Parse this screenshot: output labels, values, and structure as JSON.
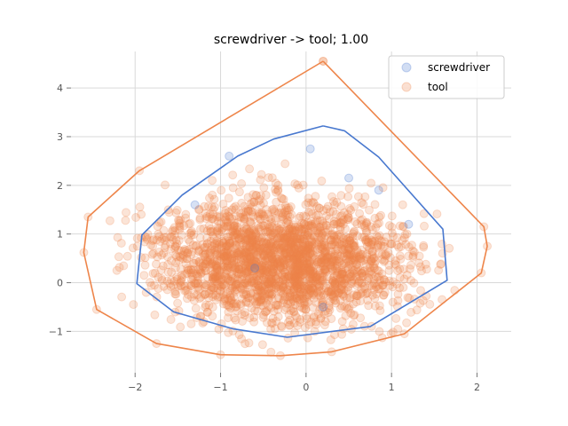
{
  "chart_data": {
    "type": "scatter",
    "title": "screwdriver -> tool; 1.00",
    "xlabel": "",
    "ylabel": "",
    "xlim": [
      -2.75,
      2.4
    ],
    "ylim": [
      -1.85,
      4.75
    ],
    "x_ticks": [
      -2,
      -1,
      0,
      1,
      2
    ],
    "y_ticks": [
      -1,
      0,
      1,
      2,
      3,
      4
    ],
    "x_tick_labels": [
      "−2",
      "−1",
      "0",
      "1",
      "2"
    ],
    "y_tick_labels": [
      "−1",
      "0",
      "1",
      "2",
      "3",
      "4"
    ],
    "grid": true,
    "legend": "top-right",
    "series": [
      {
        "name": "screwdriver",
        "color": "#4878CF",
        "points": [
          [
            -0.9,
            2.6
          ],
          [
            0.05,
            2.75
          ],
          [
            0.5,
            2.15
          ],
          [
            -1.3,
            1.6
          ],
          [
            0.85,
            1.9
          ],
          [
            1.2,
            1.2
          ],
          [
            -0.6,
            0.3
          ],
          [
            0.2,
            -0.5
          ]
        ],
        "hull": [
          [
            0.2,
            3.22
          ],
          [
            0.45,
            3.12
          ],
          [
            0.85,
            2.58
          ],
          [
            1.6,
            1.1
          ],
          [
            1.65,
            0.05
          ],
          [
            0.75,
            -0.9
          ],
          [
            -0.22,
            -1.12
          ],
          [
            -0.85,
            -0.95
          ],
          [
            -1.55,
            -0.6
          ],
          [
            -1.98,
            -0.02
          ],
          [
            -1.92,
            0.98
          ],
          [
            -1.45,
            1.8
          ],
          [
            -0.8,
            2.6
          ],
          [
            -0.38,
            2.95
          ],
          [
            0.2,
            3.22
          ]
        ]
      },
      {
        "name": "tool",
        "color": "#EE854A",
        "hull": [
          [
            0.2,
            4.55
          ],
          [
            2.08,
            1.15
          ],
          [
            2.12,
            0.75
          ],
          [
            2.05,
            0.2
          ],
          [
            1.15,
            -1.05
          ],
          [
            0.3,
            -1.42
          ],
          [
            -0.3,
            -1.5
          ],
          [
            -1.0,
            -1.48
          ],
          [
            -1.75,
            -1.25
          ],
          [
            -2.45,
            -0.55
          ],
          [
            -2.6,
            0.62
          ],
          [
            -2.55,
            1.35
          ],
          [
            -1.95,
            2.3
          ],
          [
            0.2,
            4.55
          ]
        ]
      }
    ]
  }
}
